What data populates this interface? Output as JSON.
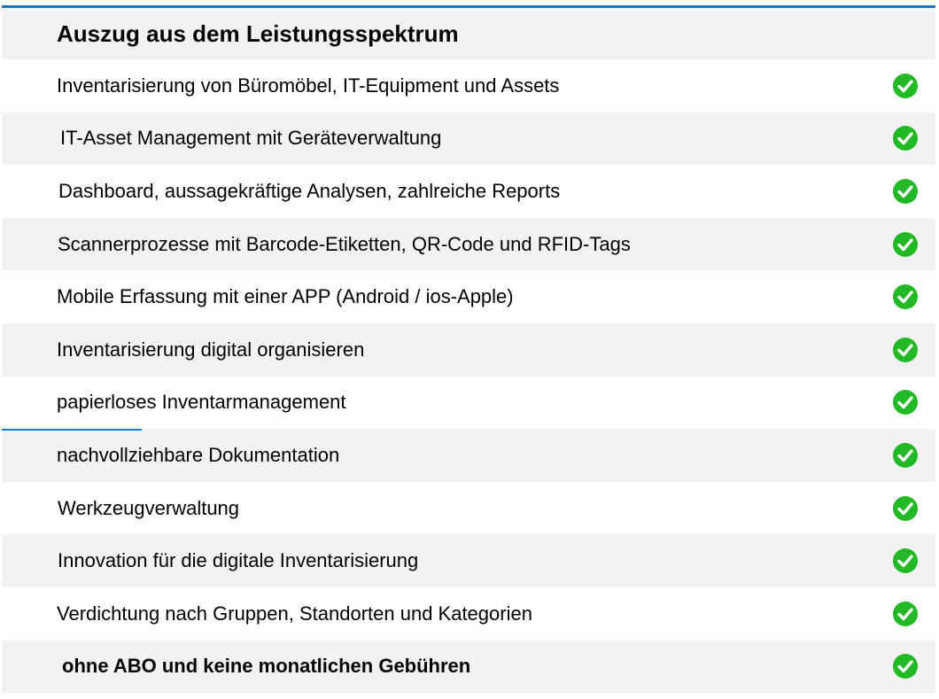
{
  "header": {
    "title": "Auszug aus dem Leistungsspektrum"
  },
  "colors": {
    "accent": "#1a78c2",
    "check": "#22b826",
    "row_shade": "#f2f2f2"
  },
  "items": [
    {
      "label": "Inventarisierung von Büromöbel,  IT-Equipment und Assets",
      "icon": "check-circle-icon"
    },
    {
      "label": "IT-Asset Management mit Geräteverwaltung",
      "icon": "check-circle-icon"
    },
    {
      "label": "Dashboard, aussagekräftige Analysen, zahlreiche Reports",
      "icon": "check-circle-icon"
    },
    {
      "label": "Scannerprozesse mit Barcode-Etiketten, QR-Code und RFID-Tags",
      "icon": "check-circle-icon"
    },
    {
      "label": "Mobile Erfassung mit einer APP (Android / ios-Apple)",
      "icon": "check-circle-icon"
    },
    {
      "label": "Inventarisierung digital organisieren",
      "icon": "check-circle-icon"
    },
    {
      "label": "papierloses Inventarmanagement",
      "icon": "check-circle-icon"
    },
    {
      "label": "nachvollziehbare Dokumentation",
      "icon": "check-circle-icon"
    },
    {
      "label": "Werkzeugverwaltung",
      "icon": "check-circle-icon"
    },
    {
      "label": "Innovation für die digitale Inventarisierung",
      "icon": "check-circle-icon"
    },
    {
      "label": "Verdichtung nach Gruppen, Standorten und Kategorien",
      "icon": "check-circle-icon"
    },
    {
      "label": "ohne ABO und keine monatlichen Gebühren",
      "icon": "check-circle-icon"
    }
  ]
}
